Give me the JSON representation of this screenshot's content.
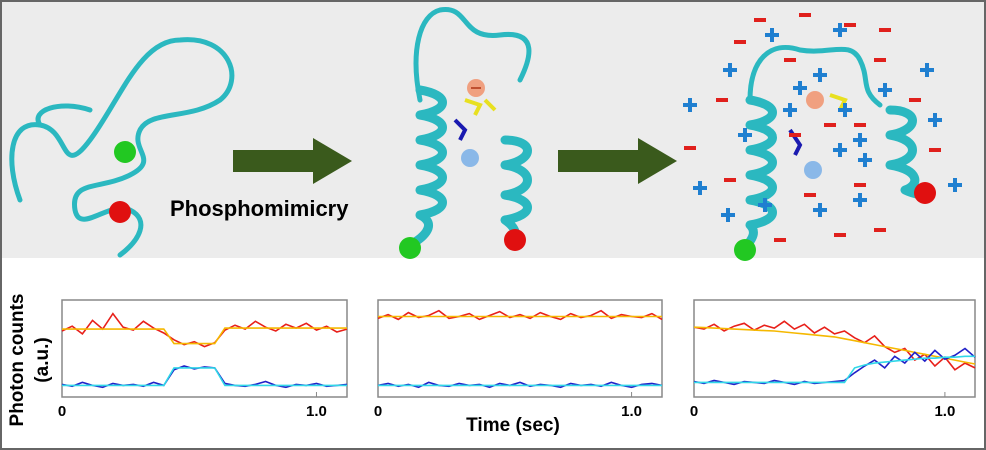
{
  "figure": {
    "label": "Phosphomimicry",
    "ylabel_lines": [
      "Photon counts",
      "(a.u.)"
    ],
    "xlabel": "Time (sec)"
  },
  "chart_data": [
    {
      "type": "line",
      "xlim": [
        0,
        1.12
      ],
      "xticks": [
        0,
        {
          "value": 1,
          "label": "1.0"
        }
      ],
      "ylim": [
        0,
        10
      ],
      "x": [
        0,
        0.04,
        0.08,
        0.12,
        0.16,
        0.2,
        0.24,
        0.28,
        0.32,
        0.36,
        0.4,
        0.44,
        0.48,
        0.52,
        0.56,
        0.6,
        0.64,
        0.68,
        0.72,
        0.76,
        0.8,
        0.84,
        0.88,
        0.92,
        0.96,
        1.0,
        1.04,
        1.08,
        1.12
      ],
      "series": [
        {
          "color": "#e8201a",
          "values": [
            6.8,
            7.3,
            6.5,
            7.9,
            7.0,
            8.6,
            7.2,
            6.9,
            7.8,
            7.1,
            6.6,
            5.9,
            5.4,
            5.7,
            5.2,
            5.6,
            6.9,
            7.4,
            7.0,
            7.8,
            7.2,
            6.8,
            7.5,
            7.1,
            7.6,
            6.9,
            7.3,
            6.7,
            7.0
          ]
        },
        {
          "color": "#f5b800",
          "values": [
            7,
            7,
            7,
            7,
            7,
            7,
            7,
            7,
            7,
            7,
            7,
            5.5,
            5.5,
            5.5,
            5.5,
            5.5,
            7.1,
            7.1,
            7.1,
            7.1,
            7.1,
            7.1,
            7.1,
            7.1,
            7.1,
            7.1,
            7.1,
            7.1,
            7.1
          ]
        },
        {
          "color": "#2020c8",
          "values": [
            1.3,
            1.1,
            1.5,
            1.2,
            1.0,
            1.4,
            1.2,
            1.3,
            1.1,
            1.5,
            1.2,
            2.8,
            3.2,
            2.9,
            3.1,
            3.0,
            1.4,
            1.2,
            1.1,
            1.3,
            1.6,
            1.2,
            1.0,
            1.3,
            1.2,
            1.4,
            1.1,
            1.2,
            1.3
          ]
        },
        {
          "color": "#30d8e8",
          "values": [
            1.2,
            1.2,
            1.2,
            1.2,
            1.2,
            1.2,
            1.2,
            1.2,
            1.2,
            1.2,
            1.2,
            3.0,
            3.0,
            3.0,
            3.0,
            3.0,
            1.2,
            1.2,
            1.2,
            1.2,
            1.2,
            1.2,
            1.2,
            1.2,
            1.2,
            1.2,
            1.2,
            1.2,
            1.2
          ]
        }
      ]
    },
    {
      "type": "line",
      "xlim": [
        0,
        1.12
      ],
      "xticks": [
        0,
        {
          "value": 1,
          "label": "1.0"
        }
      ],
      "ylim": [
        0,
        10
      ],
      "x": [
        0,
        0.04,
        0.08,
        0.12,
        0.16,
        0.2,
        0.24,
        0.28,
        0.32,
        0.36,
        0.4,
        0.44,
        0.48,
        0.52,
        0.56,
        0.6,
        0.64,
        0.68,
        0.72,
        0.76,
        0.8,
        0.84,
        0.88,
        0.92,
        0.96,
        1.0,
        1.04,
        1.08,
        1.12
      ],
      "series": [
        {
          "color": "#e8201a",
          "values": [
            8.1,
            8.5,
            8.0,
            8.7,
            8.2,
            8.4,
            8.9,
            8.1,
            8.3,
            8.6,
            8.0,
            8.4,
            8.8,
            8.2,
            8.5,
            8.1,
            8.7,
            8.3,
            8.0,
            8.6,
            8.2,
            8.4,
            8.9,
            8.1,
            8.5,
            8.3,
            8.2,
            8.6,
            8.0
          ]
        },
        {
          "color": "#f5b800",
          "values": [
            8.3,
            8.3,
            8.3,
            8.3,
            8.3,
            8.3,
            8.3,
            8.3,
            8.3,
            8.3,
            8.3,
            8.3,
            8.3,
            8.3,
            8.3,
            8.3,
            8.3,
            8.3,
            8.3,
            8.3,
            8.3,
            8.3,
            8.3,
            8.3,
            8.3,
            8.3,
            8.3,
            8.3,
            8.3
          ]
        },
        {
          "color": "#2020c8",
          "values": [
            1.2,
            1.4,
            1.1,
            1.3,
            1.0,
            1.5,
            1.2,
            1.1,
            1.4,
            1.2,
            1.3,
            1.0,
            1.4,
            1.2,
            1.5,
            1.1,
            1.3,
            1.2,
            1.0,
            1.4,
            1.2,
            1.3,
            1.1,
            1.5,
            1.2,
            1.0,
            1.3,
            1.4,
            1.2
          ]
        },
        {
          "color": "#30d8e8",
          "values": [
            1.2,
            1.2,
            1.2,
            1.2,
            1.2,
            1.2,
            1.2,
            1.2,
            1.2,
            1.2,
            1.2,
            1.2,
            1.2,
            1.2,
            1.2,
            1.2,
            1.2,
            1.2,
            1.2,
            1.2,
            1.2,
            1.2,
            1.2,
            1.2,
            1.2,
            1.2,
            1.2,
            1.2,
            1.2
          ]
        }
      ]
    },
    {
      "type": "line",
      "xlim": [
        0,
        1.12
      ],
      "xticks": [
        0,
        {
          "value": 1,
          "label": "1.0"
        }
      ],
      "ylim": [
        0,
        10
      ],
      "x": [
        0,
        0.04,
        0.08,
        0.12,
        0.16,
        0.2,
        0.24,
        0.28,
        0.32,
        0.36,
        0.4,
        0.44,
        0.48,
        0.52,
        0.56,
        0.6,
        0.64,
        0.68,
        0.72,
        0.76,
        0.8,
        0.84,
        0.88,
        0.92,
        0.96,
        1.0,
        1.04,
        1.08,
        1.12
      ],
      "series": [
        {
          "color": "#e8201a",
          "values": [
            7.2,
            7.0,
            7.5,
            6.8,
            7.3,
            7.6,
            6.9,
            7.4,
            7.1,
            7.8,
            7.0,
            7.5,
            6.6,
            7.2,
            6.5,
            6.8,
            6.1,
            5.6,
            6.3,
            5.2,
            4.6,
            5.0,
            3.8,
            4.4,
            3.2,
            4.1,
            2.8,
            3.5,
            3.0
          ]
        },
        {
          "color": "#f5b800",
          "values": [
            7.2,
            7.15,
            7.1,
            7.05,
            7.0,
            6.95,
            6.9,
            6.85,
            6.8,
            6.7,
            6.6,
            6.5,
            6.4,
            6.3,
            6.2,
            6.0,
            5.8,
            5.6,
            5.4,
            5.2,
            5.0,
            4.8,
            4.6,
            4.4,
            4.2,
            4.0,
            3.8,
            3.6,
            3.4
          ]
        },
        {
          "color": "#2020c8",
          "values": [
            1.6,
            1.4,
            1.7,
            1.5,
            1.3,
            1.6,
            1.5,
            1.4,
            1.7,
            1.5,
            1.3,
            1.6,
            1.4,
            1.5,
            1.6,
            1.7,
            2.5,
            3.2,
            3.8,
            3.0,
            4.2,
            3.5,
            4.6,
            3.7,
            4.8,
            3.9,
            4.3,
            5.0,
            4.1
          ]
        },
        {
          "color": "#30d8e8",
          "values": [
            1.5,
            1.5,
            1.5,
            1.5,
            1.5,
            1.5,
            1.5,
            1.5,
            1.5,
            1.5,
            1.5,
            1.5,
            1.5,
            1.5,
            1.5,
            1.5,
            3.0,
            3.3,
            3.5,
            3.6,
            3.7,
            3.8,
            3.9,
            4.0,
            4.0,
            4.1,
            4.1,
            4.2,
            4.2
          ]
        }
      ]
    }
  ]
}
